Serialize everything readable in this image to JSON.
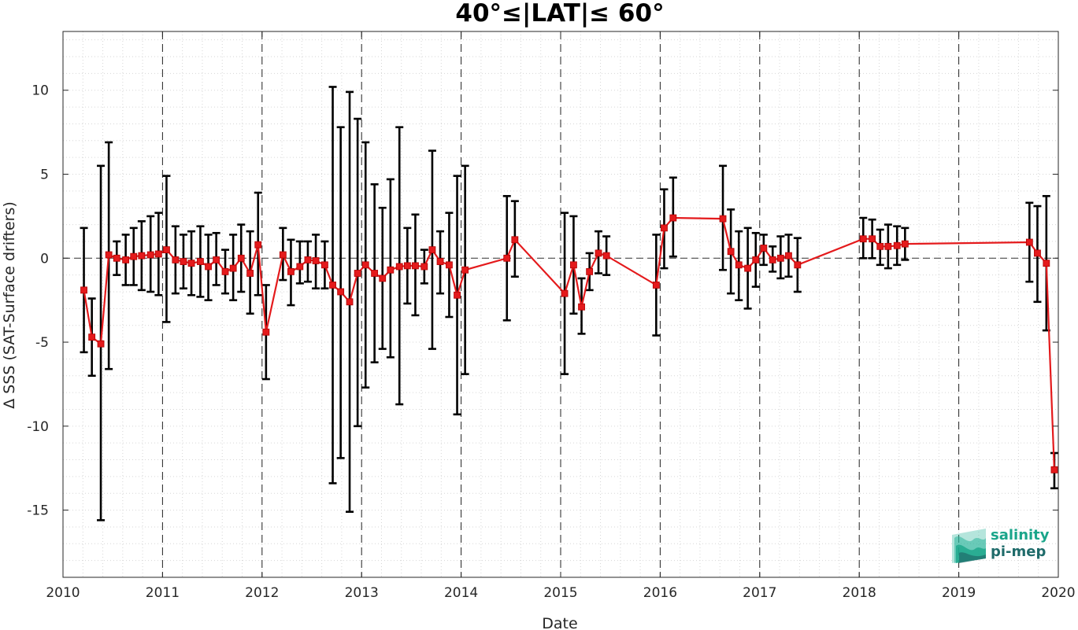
{
  "chart_data": {
    "type": "line",
    "title": "40°≤|LAT|≤ 60°",
    "xlabel": "Date",
    "ylabel": "Δ SSS (SAT-Surface drifters)",
    "xlim": [
      2010,
      2020
    ],
    "ylim": [
      -19,
      13.5
    ],
    "x_ticks": [
      2010,
      2011,
      2012,
      2013,
      2014,
      2015,
      2016,
      2017,
      2018,
      2019,
      2020
    ],
    "x_tick_labels": [
      "2010",
      "2011",
      "2012",
      "2013",
      "2014",
      "2015",
      "2016",
      "2017",
      "2018",
      "2019",
      "2020"
    ],
    "y_ticks": [
      -15,
      -10,
      -5,
      0,
      5,
      10
    ],
    "y_tick_labels": [
      "-15",
      "-10",
      "-5",
      "0",
      "5",
      "10"
    ],
    "grid": "dotted minor grid",
    "year_dividers": "dashed vertical lines at each year",
    "zero_line": "dashed horizontal line at 0",
    "line_color": "#e41a1c",
    "errorbar_color": "#000000",
    "series": [
      {
        "points": [
          {
            "x": 2010.21,
            "y": -1.9,
            "lo": -5.6,
            "hi": 1.8
          },
          {
            "x": 2010.29,
            "y": -4.7,
            "lo": -7.0,
            "hi": -2.4
          },
          {
            "x": 2010.38,
            "y": -5.1,
            "lo": -15.6,
            "hi": 5.5
          },
          {
            "x": 2010.46,
            "y": 0.2,
            "lo": -6.6,
            "hi": 6.9
          },
          {
            "x": 2010.54,
            "y": 0.0,
            "lo": -1.0,
            "hi": 1.0
          },
          {
            "x": 2010.63,
            "y": -0.1,
            "lo": -1.6,
            "hi": 1.4
          },
          {
            "x": 2010.71,
            "y": 0.1,
            "lo": -1.6,
            "hi": 1.8
          },
          {
            "x": 2010.79,
            "y": 0.15,
            "lo": -1.9,
            "hi": 2.2
          },
          {
            "x": 2010.88,
            "y": 0.2,
            "lo": -2.0,
            "hi": 2.5
          },
          {
            "x": 2010.96,
            "y": 0.25,
            "lo": -2.2,
            "hi": 2.7
          },
          {
            "x": 2011.04,
            "y": 0.5,
            "lo": -3.8,
            "hi": 4.9
          },
          {
            "x": 2011.13,
            "y": -0.1,
            "lo": -2.1,
            "hi": 1.9
          },
          {
            "x": 2011.21,
            "y": -0.2,
            "lo": -1.8,
            "hi": 1.4
          },
          {
            "x": 2011.29,
            "y": -0.3,
            "lo": -2.2,
            "hi": 1.6
          },
          {
            "x": 2011.38,
            "y": -0.2,
            "lo": -2.3,
            "hi": 1.9
          },
          {
            "x": 2011.46,
            "y": -0.5,
            "lo": -2.5,
            "hi": 1.4
          },
          {
            "x": 2011.54,
            "y": -0.1,
            "lo": -1.6,
            "hi": 1.5
          },
          {
            "x": 2011.63,
            "y": -0.8,
            "lo": -2.1,
            "hi": 0.5
          },
          {
            "x": 2011.71,
            "y": -0.6,
            "lo": -2.5,
            "hi": 1.4
          },
          {
            "x": 2011.79,
            "y": 0.0,
            "lo": -2.0,
            "hi": 2.0
          },
          {
            "x": 2011.88,
            "y": -0.9,
            "lo": -3.3,
            "hi": 1.6
          },
          {
            "x": 2011.96,
            "y": 0.8,
            "lo": -2.2,
            "hi": 3.9
          },
          {
            "x": 2012.04,
            "y": -4.4,
            "lo": -7.2,
            "hi": -1.6
          },
          {
            "x": 2012.21,
            "y": 0.2,
            "lo": -1.3,
            "hi": 1.8
          },
          {
            "x": 2012.29,
            "y": -0.8,
            "lo": -2.8,
            "hi": 1.1
          },
          {
            "x": 2012.38,
            "y": -0.5,
            "lo": -1.5,
            "hi": 1.0
          },
          {
            "x": 2012.46,
            "y": -0.1,
            "lo": -1.4,
            "hi": 1.0
          },
          {
            "x": 2012.54,
            "y": -0.15,
            "lo": -1.8,
            "hi": 1.4
          },
          {
            "x": 2012.63,
            "y": -0.4,
            "lo": -1.8,
            "hi": 1.0
          },
          {
            "x": 2012.71,
            "y": -1.6,
            "lo": -13.4,
            "hi": 10.2
          },
          {
            "x": 2012.79,
            "y": -2.0,
            "lo": -11.9,
            "hi": 7.8
          },
          {
            "x": 2012.88,
            "y": -2.6,
            "lo": -15.1,
            "hi": 9.9
          },
          {
            "x": 2012.96,
            "y": -0.9,
            "lo": -10.0,
            "hi": 8.3
          },
          {
            "x": 2013.04,
            "y": -0.4,
            "lo": -7.7,
            "hi": 6.9
          },
          {
            "x": 2013.13,
            "y": -0.9,
            "lo": -6.2,
            "hi": 4.4
          },
          {
            "x": 2013.21,
            "y": -1.2,
            "lo": -5.4,
            "hi": 3.0
          },
          {
            "x": 2013.29,
            "y": -0.7,
            "lo": -5.9,
            "hi": 4.7
          },
          {
            "x": 2013.38,
            "y": -0.5,
            "lo": -8.7,
            "hi": 7.8
          },
          {
            "x": 2013.46,
            "y": -0.45,
            "lo": -2.7,
            "hi": 1.8
          },
          {
            "x": 2013.54,
            "y": -0.45,
            "lo": -3.4,
            "hi": 2.6
          },
          {
            "x": 2013.63,
            "y": -0.5,
            "lo": -1.5,
            "hi": 0.5
          },
          {
            "x": 2013.71,
            "y": 0.5,
            "lo": -5.4,
            "hi": 6.4
          },
          {
            "x": 2013.79,
            "y": -0.2,
            "lo": -2.1,
            "hi": 1.6
          },
          {
            "x": 2013.88,
            "y": -0.4,
            "lo": -3.5,
            "hi": 2.7
          },
          {
            "x": 2013.96,
            "y": -2.2,
            "lo": -9.3,
            "hi": 4.9
          },
          {
            "x": 2014.04,
            "y": -0.7,
            "lo": -6.9,
            "hi": 5.5
          },
          {
            "x": 2014.46,
            "y": 0.0,
            "lo": -3.7,
            "hi": 3.7
          },
          {
            "x": 2014.54,
            "y": 1.1,
            "lo": -1.1,
            "hi": 3.4
          },
          {
            "x": 2015.04,
            "y": -2.1,
            "lo": -6.9,
            "hi": 2.7
          },
          {
            "x": 2015.13,
            "y": -0.4,
            "lo": -3.3,
            "hi": 2.5
          },
          {
            "x": 2015.21,
            "y": -2.9,
            "lo": -4.5,
            "hi": -1.2
          },
          {
            "x": 2015.29,
            "y": -0.8,
            "lo": -1.9,
            "hi": 0.3
          },
          {
            "x": 2015.38,
            "y": 0.3,
            "lo": -0.9,
            "hi": 1.6
          },
          {
            "x": 2015.46,
            "y": 0.15,
            "lo": -1.0,
            "hi": 1.3
          },
          {
            "x": 2015.96,
            "y": -1.6,
            "lo": -4.6,
            "hi": 1.4
          },
          {
            "x": 2016.04,
            "y": 1.8,
            "lo": -0.6,
            "hi": 4.1
          },
          {
            "x": 2016.13,
            "y": 2.4,
            "lo": 0.1,
            "hi": 4.8
          },
          {
            "x": 2016.63,
            "y": 2.35,
            "lo": -0.7,
            "hi": 5.5
          },
          {
            "x": 2016.71,
            "y": 0.4,
            "lo": -2.1,
            "hi": 2.9
          },
          {
            "x": 2016.79,
            "y": -0.4,
            "lo": -2.5,
            "hi": 1.6
          },
          {
            "x": 2016.88,
            "y": -0.6,
            "lo": -3.0,
            "hi": 1.8
          },
          {
            "x": 2016.96,
            "y": -0.1,
            "lo": -1.7,
            "hi": 1.5
          },
          {
            "x": 2017.04,
            "y": 0.6,
            "lo": -0.4,
            "hi": 1.4
          },
          {
            "x": 2017.13,
            "y": -0.1,
            "lo": -0.8,
            "hi": 0.7
          },
          {
            "x": 2017.21,
            "y": 0.0,
            "lo": -1.2,
            "hi": 1.3
          },
          {
            "x": 2017.29,
            "y": 0.15,
            "lo": -1.1,
            "hi": 1.4
          },
          {
            "x": 2017.38,
            "y": -0.4,
            "lo": -2.0,
            "hi": 1.2
          },
          {
            "x": 2018.04,
            "y": 1.15,
            "lo": 0.0,
            "hi": 2.4
          },
          {
            "x": 2018.13,
            "y": 1.15,
            "lo": 0.0,
            "hi": 2.3
          },
          {
            "x": 2018.21,
            "y": 0.7,
            "lo": -0.4,
            "hi": 1.7
          },
          {
            "x": 2018.29,
            "y": 0.7,
            "lo": -0.6,
            "hi": 2.0
          },
          {
            "x": 2018.38,
            "y": 0.75,
            "lo": -0.4,
            "hi": 1.9
          },
          {
            "x": 2018.46,
            "y": 0.85,
            "lo": -0.1,
            "hi": 1.8
          },
          {
            "x": 2019.71,
            "y": 0.95,
            "lo": -1.4,
            "hi": 3.3
          },
          {
            "x": 2019.79,
            "y": 0.3,
            "lo": -2.6,
            "hi": 3.1
          },
          {
            "x": 2019.88,
            "y": -0.3,
            "lo": -4.3,
            "hi": 3.7
          },
          {
            "x": 2019.96,
            "y": -12.6,
            "lo": -13.7,
            "hi": -11.6
          }
        ]
      }
    ]
  },
  "logo": {
    "line1": "salinity",
    "line2": "pi-mep",
    "colors": {
      "line1": "#1aa58a",
      "line2": "#1f6b6a",
      "mark": "#2ab49a"
    }
  }
}
